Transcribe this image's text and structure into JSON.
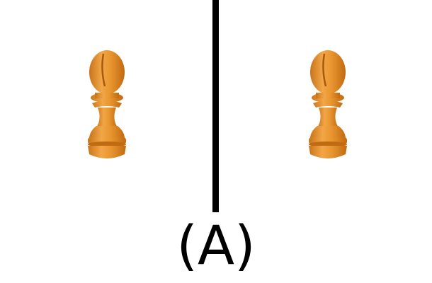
{
  "caption": "(A)",
  "colors": {
    "piece_fill": "#E8962F",
    "piece_shadow": "#C9741A",
    "piece_highlight": "#F6B35A",
    "divider": "#000000",
    "background": "#FFFFFF"
  },
  "icons": {
    "left": "bishop-chess-piece-icon",
    "right": "bishop-chess-piece-icon"
  }
}
